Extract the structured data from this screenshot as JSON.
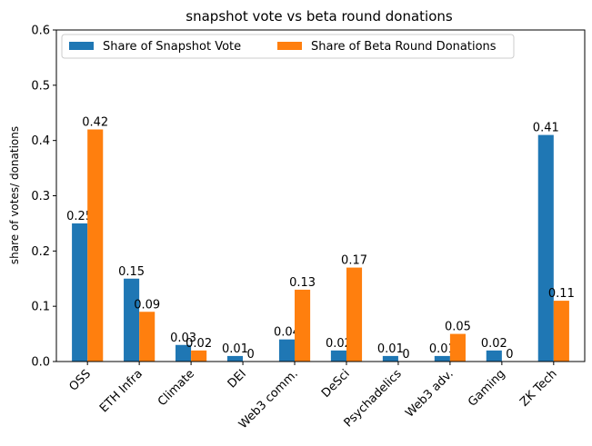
{
  "chart_data": {
    "type": "bar",
    "title": "snapshot vote vs beta round donations",
    "xlabel": "",
    "ylabel": "share of votes/ donations",
    "ylim": [
      0,
      0.6
    ],
    "yticks": [
      "0.0",
      "0.1",
      "0.2",
      "0.3",
      "0.4",
      "0.5",
      "0.6"
    ],
    "categories": [
      "OSS",
      "ETH Infra",
      "Climate",
      "DEI",
      "Web3 comm.",
      "DeSci",
      "Psychadelics",
      "Web3 adv.",
      "Gaming",
      "ZK Tech"
    ],
    "series": [
      {
        "name": "Share of Snapshot Vote",
        "color": "#1f77b4",
        "values": [
          0.25,
          0.15,
          0.03,
          0.01,
          0.04,
          0.02,
          0.01,
          0.01,
          0.02,
          0.41
        ],
        "labels": [
          "0.25",
          "0.15",
          "0.03",
          "0.01",
          "0.04",
          "0.02",
          "0.01",
          "0.01",
          "0.02",
          "0.41"
        ]
      },
      {
        "name": "Share of Beta Round Donations",
        "color": "#ff7f0e",
        "values": [
          0.42,
          0.09,
          0.02,
          0,
          0.13,
          0.17,
          0,
          0.05,
          0,
          0.11
        ],
        "labels": [
          "0.42",
          "0.09",
          "0.02",
          "0",
          "0.13",
          "0.17",
          "0",
          "0.05",
          "0",
          "0.11"
        ]
      }
    ],
    "legend": "top-left",
    "grid": false
  }
}
